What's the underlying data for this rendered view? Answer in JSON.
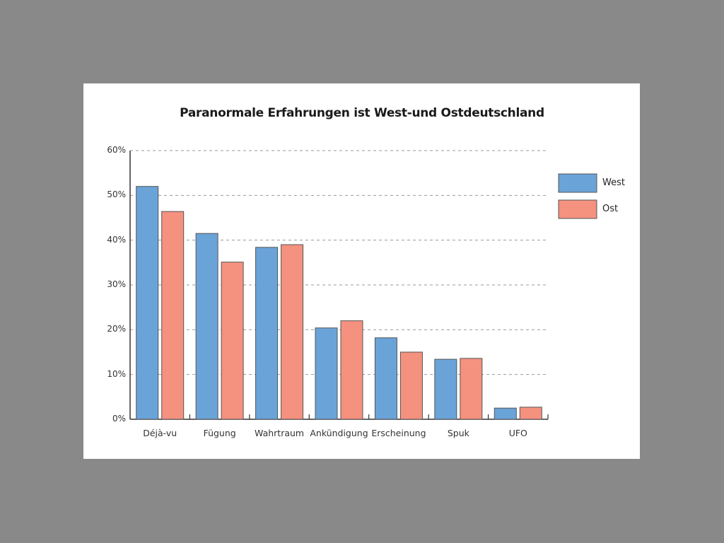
{
  "chart_data": {
    "type": "bar",
    "title": "Paranormale Erfahrungen ist West-und Ostdeutschland",
    "xlabel": "",
    "ylabel": "",
    "ylim": [
      0,
      60
    ],
    "yticks": [
      0,
      10,
      20,
      30,
      40,
      50,
      60
    ],
    "ytick_labels": [
      "0%",
      "10%",
      "20%",
      "30%",
      "40%",
      "50%",
      "60%"
    ],
    "grid": true,
    "legend_position": "right",
    "categories": [
      "Déjà-vu",
      "Fügung",
      "Wahrtraum",
      "Ankündigung",
      "Erscheinung",
      "Spuk",
      "UFO"
    ],
    "series": [
      {
        "name": "West",
        "color": "#6aa3d8",
        "values": [
          52.0,
          41.5,
          38.4,
          20.4,
          18.2,
          13.4,
          2.5
        ]
      },
      {
        "name": "Ost",
        "color": "#f5917f",
        "values": [
          46.4,
          35.1,
          39.0,
          22.0,
          15.0,
          13.6,
          2.7
        ]
      }
    ]
  },
  "colors": {
    "background": "#898989",
    "panel": "#ffffff",
    "grid": "#999999",
    "axis": "#333333"
  }
}
